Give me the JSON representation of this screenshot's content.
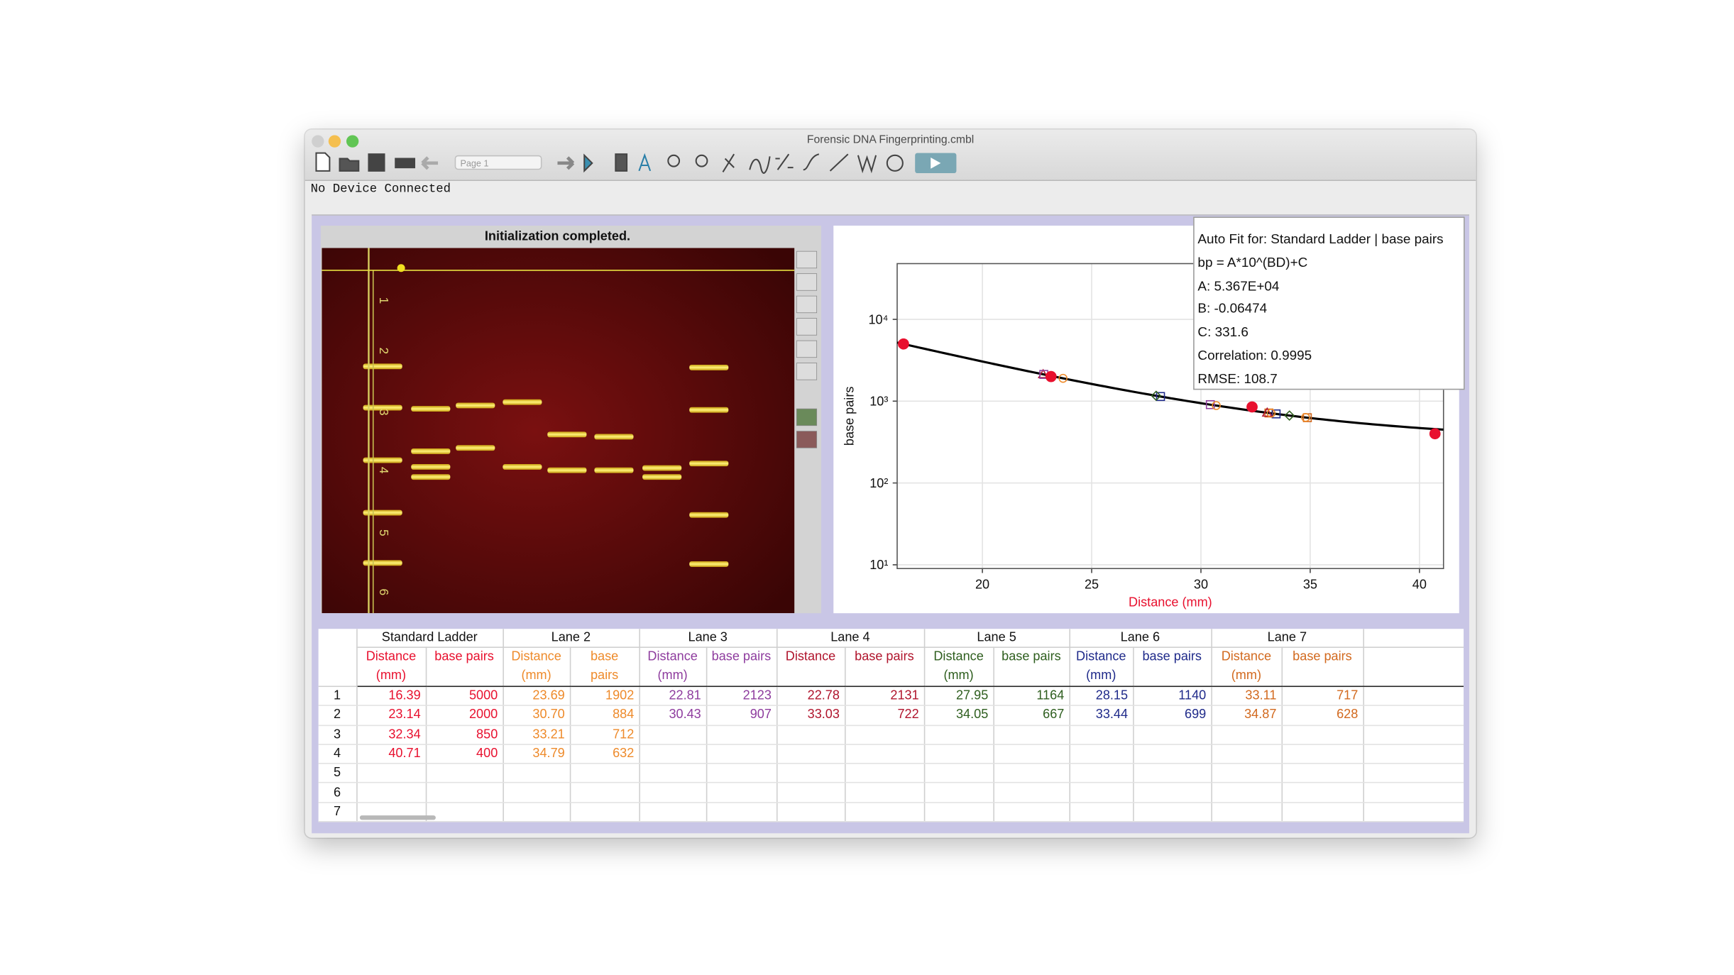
{
  "window": {
    "title": "Forensic DNA Fingerprinting.cmbl",
    "page_selector": "Page 1",
    "status": "No Device Connected"
  },
  "gel": {
    "title": "Initialization completed.",
    "ruler_labels": [
      "1",
      "2",
      "3",
      "4",
      "5",
      "6"
    ]
  },
  "chart_data": {
    "type": "scatter",
    "x_label": "Distance (mm)",
    "y_label": "base pairs",
    "xlim": [
      16.1,
      41.1
    ],
    "ylim": [
      9,
      48000
    ],
    "log_y": true,
    "grid": true,
    "xticks": [
      20,
      25,
      30,
      35,
      40
    ],
    "yticks": [
      {
        "value": 10,
        "label": "10¹"
      },
      {
        "value": 100,
        "label": "10²"
      },
      {
        "value": 1000,
        "label": "10³"
      },
      {
        "value": 10000,
        "label": "10⁴"
      }
    ],
    "series": [
      {
        "color": "#e8102e",
        "marker": "circle",
        "filled": true,
        "x": [
          16.39,
          23.14,
          32.34,
          40.71
        ],
        "values": [
          5000,
          2000,
          850,
          400
        ]
      },
      {
        "color": "#ee8a2a",
        "marker": "circle",
        "filled": false,
        "x": [
          23.69,
          30.7,
          33.21,
          34.79
        ],
        "values": [
          1902,
          884,
          712,
          632
        ]
      },
      {
        "color": "#8e3c9e",
        "marker": "square",
        "filled": false,
        "x": [
          22.81,
          30.43
        ],
        "values": [
          2123,
          907
        ]
      },
      {
        "color": "#b0142c",
        "marker": "triangle",
        "filled": false,
        "x": [
          22.78,
          33.03
        ],
        "values": [
          2131,
          722
        ]
      },
      {
        "color": "#2e5e1e",
        "marker": "diamond",
        "filled": false,
        "x": [
          27.95,
          34.05
        ],
        "values": [
          1164,
          667
        ]
      },
      {
        "color": "#1f2a8a",
        "marker": "square",
        "filled": false,
        "x": [
          28.15,
          33.44
        ],
        "values": [
          1140,
          699
        ]
      },
      {
        "color": "#d2691e",
        "marker": "square",
        "filled": false,
        "x": [
          33.11,
          34.87
        ],
        "values": [
          717,
          628
        ]
      }
    ],
    "fit": {
      "title": "Auto Fit for: Standard Ladder | base pairs",
      "equation": "bp = A*10^(BD)+C",
      "color": "#000000",
      "A": {
        "value": 53670,
        "label": "A: 5.367E+04"
      },
      "B": {
        "value": -0.06474,
        "label": "B: -0.06474"
      },
      "C": {
        "value": 331.6,
        "label": "C: 331.6"
      },
      "correlation": "Correlation: 0.9995",
      "rmse": "RMSE: 108.7"
    }
  },
  "table": {
    "row_numbers": [
      "1",
      "2",
      "3",
      "4",
      "5",
      "6",
      "7"
    ],
    "groups": [
      {
        "name": "Standard Ladder",
        "color": "#e8102e",
        "columns": [
          "Distance (mm)",
          "base pairs"
        ],
        "rows": [
          [
            "16.39",
            "5000"
          ],
          [
            "23.14",
            "2000"
          ],
          [
            "32.34",
            "850"
          ],
          [
            "40.71",
            "400"
          ]
        ]
      },
      {
        "name": "Lane 2",
        "color": "#ee8a2a",
        "columns": [
          "Distance (mm)",
          "base pairs"
        ],
        "rows": [
          [
            "23.69",
            "1902"
          ],
          [
            "30.70",
            "884"
          ],
          [
            "33.21",
            "712"
          ],
          [
            "34.79",
            "632"
          ]
        ]
      },
      {
        "name": "Lane 3",
        "color": "#8e3c9e",
        "columns": [
          "Distance (mm)",
          "base pairs"
        ],
        "rows": [
          [
            "22.81",
            "2123"
          ],
          [
            "30.43",
            "907"
          ]
        ]
      },
      {
        "name": "Lane 4",
        "color": "#b0142c",
        "columns": [
          "Distance",
          "base pairs"
        ],
        "rows": [
          [
            "22.78",
            "2131"
          ],
          [
            "33.03",
            "722"
          ]
        ]
      },
      {
        "name": "Lane 5",
        "color": "#2e5e1e",
        "columns": [
          "Distance (mm)",
          "base pairs"
        ],
        "rows": [
          [
            "27.95",
            "1164"
          ],
          [
            "34.05",
            "667"
          ]
        ]
      },
      {
        "name": "Lane 6",
        "color": "#1f2a8a",
        "columns": [
          "Distance (mm)",
          "base pairs"
        ],
        "rows": [
          [
            "28.15",
            "1140"
          ],
          [
            "33.44",
            "699"
          ]
        ]
      },
      {
        "name": "Lane 7",
        "color": "#d2691e",
        "columns": [
          "Distance (mm)",
          "base pairs"
        ],
        "rows": [
          [
            "33.11",
            "717"
          ],
          [
            "34.87",
            "628"
          ]
        ]
      }
    ]
  }
}
